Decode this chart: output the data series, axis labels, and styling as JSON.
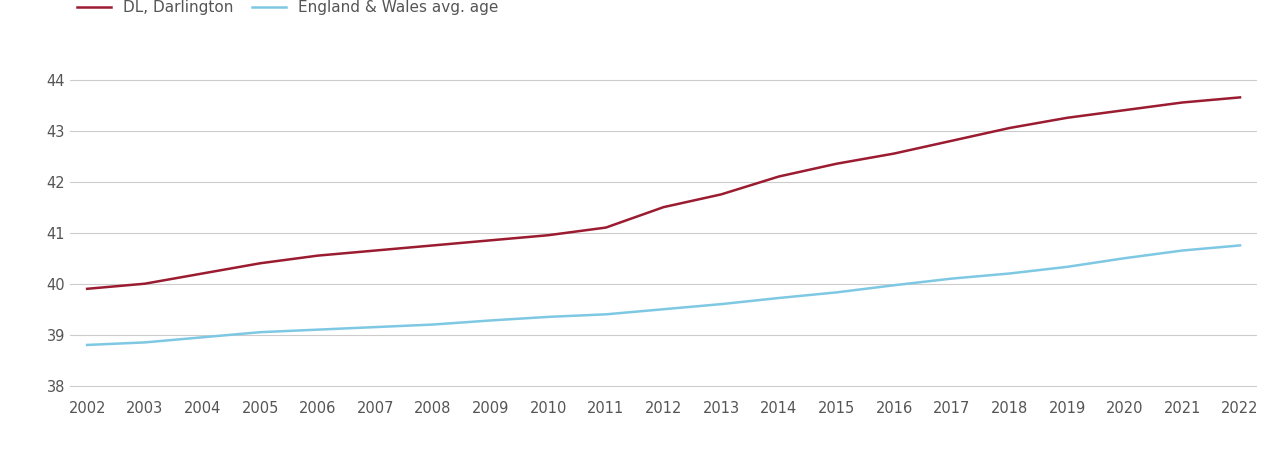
{
  "years": [
    2002,
    2003,
    2004,
    2005,
    2006,
    2007,
    2008,
    2009,
    2010,
    2011,
    2012,
    2013,
    2014,
    2015,
    2016,
    2017,
    2018,
    2019,
    2020,
    2021,
    2022
  ],
  "darlington": [
    39.9,
    40.0,
    40.2,
    40.4,
    40.55,
    40.65,
    40.75,
    40.85,
    40.95,
    41.1,
    41.5,
    41.75,
    42.1,
    42.35,
    42.55,
    42.8,
    43.05,
    43.25,
    43.4,
    43.55,
    43.65
  ],
  "england_wales": [
    38.8,
    38.85,
    38.95,
    39.05,
    39.1,
    39.15,
    39.2,
    39.28,
    39.35,
    39.4,
    39.5,
    39.6,
    39.72,
    39.83,
    39.97,
    40.1,
    40.2,
    40.33,
    40.5,
    40.65,
    40.75
  ],
  "darlington_color": "#9B1B30",
  "england_wales_color": "#7EC8E3",
  "darlington_label": "DL, Darlington",
  "england_wales_label": "England & Wales avg. age",
  "ylim_min": 37.8,
  "ylim_max": 44.5,
  "yticks": [
    38,
    39,
    40,
    41,
    42,
    43,
    44
  ],
  "background_color": "#ffffff",
  "grid_color": "#cccccc",
  "line_width": 1.8,
  "tick_color": "#555555",
  "legend_fontsize": 11,
  "tick_fontsize": 10.5
}
